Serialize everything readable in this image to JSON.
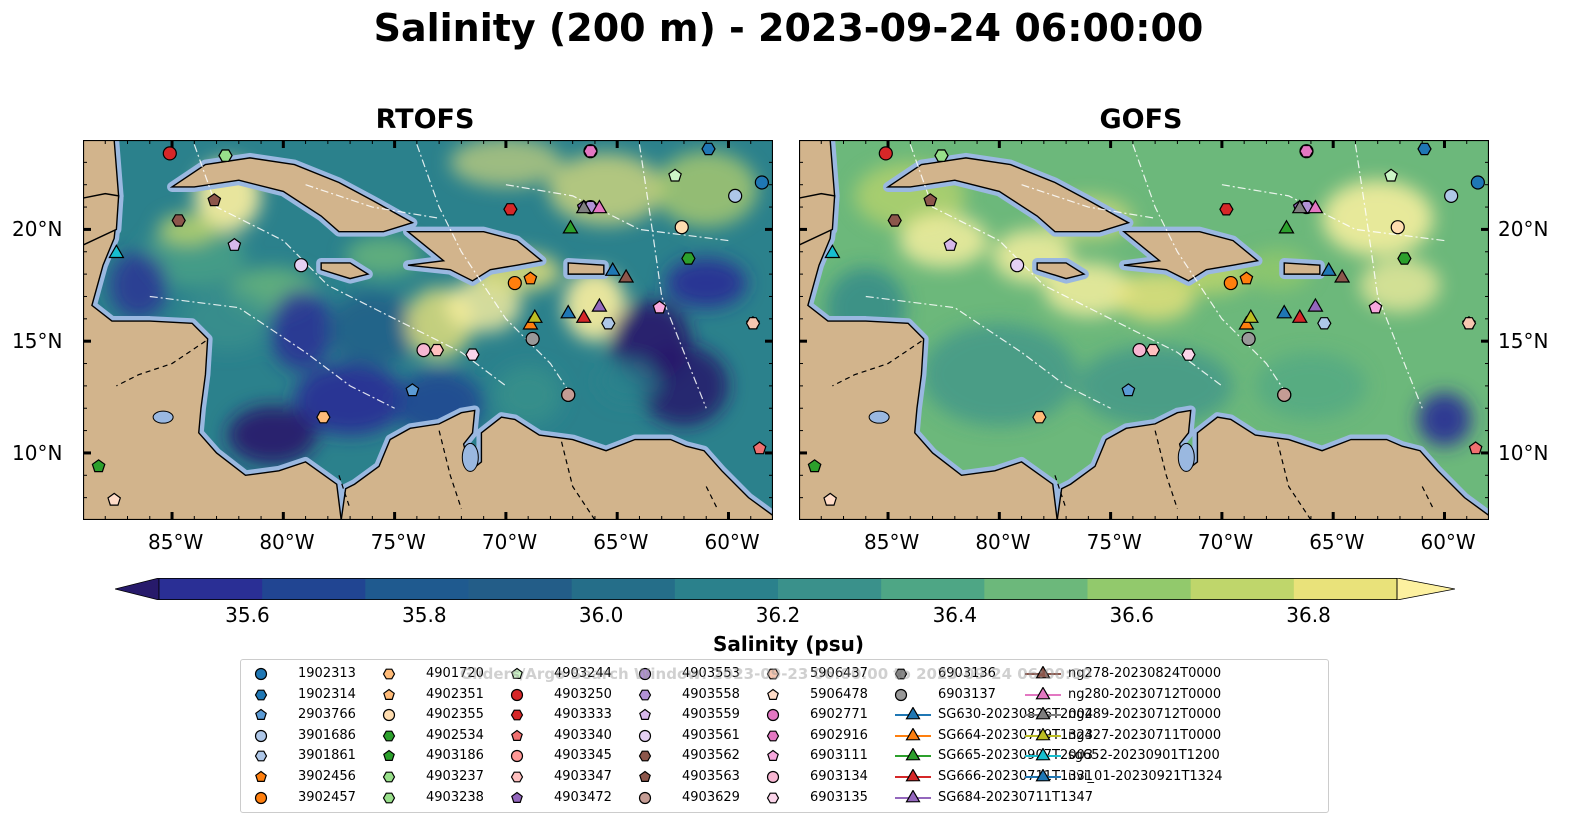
{
  "title": "Salinity (200 m) - 2023-09-24 06:00:00",
  "panels": [
    {
      "title": "RTOFS"
    },
    {
      "title": "GOFS"
    }
  ],
  "axes": {
    "lon_ticks": [
      "85°W",
      "80°W",
      "75°W",
      "70°W",
      "65°W",
      "60°W"
    ],
    "lat_ticks": [
      "20°N",
      "15°N",
      "10°N"
    ]
  },
  "colorbar": {
    "label": "Salinity (psu)",
    "ticks": [
      "35.6",
      "35.8",
      "36.0",
      "36.2",
      "36.4",
      "36.6",
      "36.8"
    ],
    "colors": [
      "#271a6b",
      "#2a2f95",
      "#214592",
      "#1f5a8f",
      "#235d88",
      "#256e89",
      "#2b818c",
      "#3a918b",
      "#4ea685",
      "#6cb87b",
      "#92c96c",
      "#bfd66b",
      "#e9e27a",
      "#fdf1a0"
    ]
  },
  "watermark": "Gliders/Argo Search Window: 2023-09-23 06:00:00 to 2023-09-24 06:00:00",
  "chart_data": {
    "type": "heatmap",
    "variable": "Salinity",
    "depth": "200 m",
    "time": "2023-09-24 06:00:00",
    "units": "psu",
    "colorbar_range": [
      35.5,
      36.9
    ],
    "lon_range": [
      -89,
      -58
    ],
    "lat_range": [
      7,
      24
    ],
    "panels": [
      "RTOFS",
      "GOFS"
    ],
    "platforms": [
      {
        "id": "1902313",
        "lon": -58.5,
        "lat": 22.1,
        "marker": "circle",
        "color": "#1f77b4"
      },
      {
        "id": "1902314",
        "lon": -60.9,
        "lat": 23.6,
        "marker": "hexagon",
        "color": "#1f77b4"
      },
      {
        "id": "2903766",
        "lon": -74.2,
        "lat": 12.8,
        "marker": "pentagon",
        "color": "#5b9bd5"
      },
      {
        "id": "3901686",
        "lon": -59.7,
        "lat": 21.5,
        "marker": "circle",
        "color": "#aec7e8"
      },
      {
        "id": "3901861",
        "lon": -65.4,
        "lat": 15.8,
        "marker": "hexagon",
        "color": "#aec7e8"
      },
      {
        "id": "3902456",
        "lon": -68.9,
        "lat": 17.8,
        "marker": "pentagon",
        "color": "#ff7f0e"
      },
      {
        "id": "3902457",
        "lon": -69.6,
        "lat": 17.6,
        "marker": "circle",
        "color": "#ff7f0e"
      },
      {
        "id": "4901720",
        "lon": -78.2,
        "lat": 11.6,
        "marker": "hexagon",
        "color": "#ffbb78"
      },
      {
        "id": "4902351",
        "lon": -58.9,
        "lat": 15.8,
        "marker": "pentagon",
        "color": "#ffbb78"
      },
      {
        "id": "4902355",
        "lon": -62.1,
        "lat": 20.1,
        "marker": "circle",
        "color": "#ffddb0"
      },
      {
        "id": "4902534",
        "lon": -61.8,
        "lat": 18.7,
        "marker": "hexagon",
        "color": "#2ca02c"
      },
      {
        "id": "4903186",
        "lon": -88.3,
        "lat": 9.4,
        "marker": "pentagon",
        "color": "#2ca02c"
      },
      {
        "id": "4903237",
        "lon": -82.6,
        "lat": 23.3,
        "marker": "hexagon",
        "color": "#98df8a"
      },
      {
        "id": "4903238",
        "lon": -82.6,
        "lat": 23.3,
        "marker": "hexagon",
        "color": "#98df8a"
      },
      {
        "id": "4903244",
        "lon": -62.4,
        "lat": 22.4,
        "marker": "pentagon",
        "color": "#ccf5c6"
      },
      {
        "id": "4903250",
        "lon": -85.1,
        "lat": 23.4,
        "marker": "circle",
        "color": "#d62728"
      },
      {
        "id": "4903333",
        "lon": -69.8,
        "lat": 20.9,
        "marker": "hexagon",
        "color": "#d62728"
      },
      {
        "id": "4903340",
        "lon": -58.6,
        "lat": 10.2,
        "marker": "pentagon",
        "color": "#f07070"
      },
      {
        "id": "4903345",
        "lon": -67.2,
        "lat": 12.6,
        "marker": "circle",
        "color": "#ff9896"
      },
      {
        "id": "4903347",
        "lon": -73.1,
        "lat": 14.6,
        "marker": "hexagon",
        "color": "#ffc0bf"
      },
      {
        "id": "4903472",
        "lon": -66.5,
        "lat": 21.0,
        "marker": "pentagon",
        "color": "#9467bd"
      },
      {
        "id": "4903553",
        "lon": -66.2,
        "lat": 21.0,
        "marker": "circle",
        "color": "#b292d6"
      },
      {
        "id": "4903558",
        "lon": -66.2,
        "lat": 21.0,
        "marker": "hexagon",
        "color": "#b292d6"
      },
      {
        "id": "4903559",
        "lon": -82.2,
        "lat": 19.3,
        "marker": "pentagon",
        "color": "#d6b8ea"
      },
      {
        "id": "4903561",
        "lon": -79.2,
        "lat": 18.4,
        "marker": "circle",
        "color": "#e5d0f3"
      },
      {
        "id": "4903562",
        "lon": -84.7,
        "lat": 20.4,
        "marker": "hexagon",
        "color": "#8c564b"
      },
      {
        "id": "4903563",
        "lon": -83.1,
        "lat": 21.3,
        "marker": "pentagon",
        "color": "#8c564b"
      },
      {
        "id": "4903629",
        "lon": -67.2,
        "lat": 12.6,
        "marker": "circle",
        "color": "#c49c94"
      },
      {
        "id": "5906437",
        "lon": -58.9,
        "lat": 15.8,
        "marker": "hexagon",
        "color": "#f7c6b0"
      },
      {
        "id": "5906478",
        "lon": -87.6,
        "lat": 7.9,
        "marker": "pentagon",
        "color": "#ffdcc8"
      },
      {
        "id": "6902771",
        "lon": -66.2,
        "lat": 23.5,
        "marker": "circle",
        "color": "#e377c2"
      },
      {
        "id": "6902916",
        "lon": -66.2,
        "lat": 23.5,
        "marker": "hexagon",
        "color": "#e377c2"
      },
      {
        "id": "6903111",
        "lon": -63.1,
        "lat": 16.5,
        "marker": "pentagon",
        "color": "#f7a8dd"
      },
      {
        "id": "6903134",
        "lon": -73.7,
        "lat": 14.6,
        "marker": "circle",
        "color": "#f7b6d2"
      },
      {
        "id": "6903135",
        "lon": -71.5,
        "lat": 14.4,
        "marker": "hexagon",
        "color": "#fbd5ea"
      },
      {
        "id": "6903136",
        "lon": -68.8,
        "lat": 15.1,
        "marker": "hexagon",
        "color": "#7f7f7f"
      },
      {
        "id": "6903137",
        "lon": -68.8,
        "lat": 15.1,
        "marker": "circle",
        "color": "#999999"
      },
      {
        "id": "SG630-20230826T2004",
        "lon": -67.2,
        "lat": 16.3,
        "marker": "triangle",
        "color": "#1f77b4"
      },
      {
        "id": "SG664-20230719T1323",
        "lon": -68.9,
        "lat": 15.8,
        "marker": "triangle",
        "color": "#ff7f0e"
      },
      {
        "id": "SG665-20230907T2003",
        "lon": -67.1,
        "lat": 20.1,
        "marker": "triangle",
        "color": "#2ca02c"
      },
      {
        "id": "SG666-20230711T1331",
        "lon": -66.5,
        "lat": 16.1,
        "marker": "triangle",
        "color": "#d62728"
      },
      {
        "id": "SG684-20230711T1347",
        "lon": -65.8,
        "lat": 16.6,
        "marker": "triangle",
        "color": "#9467bd"
      },
      {
        "id": "ng278-20230824T0000",
        "lon": -64.6,
        "lat": 17.9,
        "marker": "triangle",
        "color": "#8c564b"
      },
      {
        "id": "ng280-20230712T0000",
        "lon": -65.8,
        "lat": 21.0,
        "marker": "triangle",
        "color": "#e377c2"
      },
      {
        "id": "ng289-20230712T0000",
        "lon": -66.5,
        "lat": 21.0,
        "marker": "triangle",
        "color": "#7f7f7f"
      },
      {
        "id": "ng427-20230711T0000",
        "lon": -68.7,
        "lat": 16.1,
        "marker": "triangle",
        "color": "#bcbd22"
      },
      {
        "id": "sg652-20230901T1200",
        "lon": -87.5,
        "lat": 19.0,
        "marker": "triangle",
        "color": "#17becf"
      },
      {
        "id": "uvi_01-20230921T1324",
        "lon": -65.2,
        "lat": 18.2,
        "marker": "triangle",
        "color": "#1f77b4"
      }
    ]
  }
}
